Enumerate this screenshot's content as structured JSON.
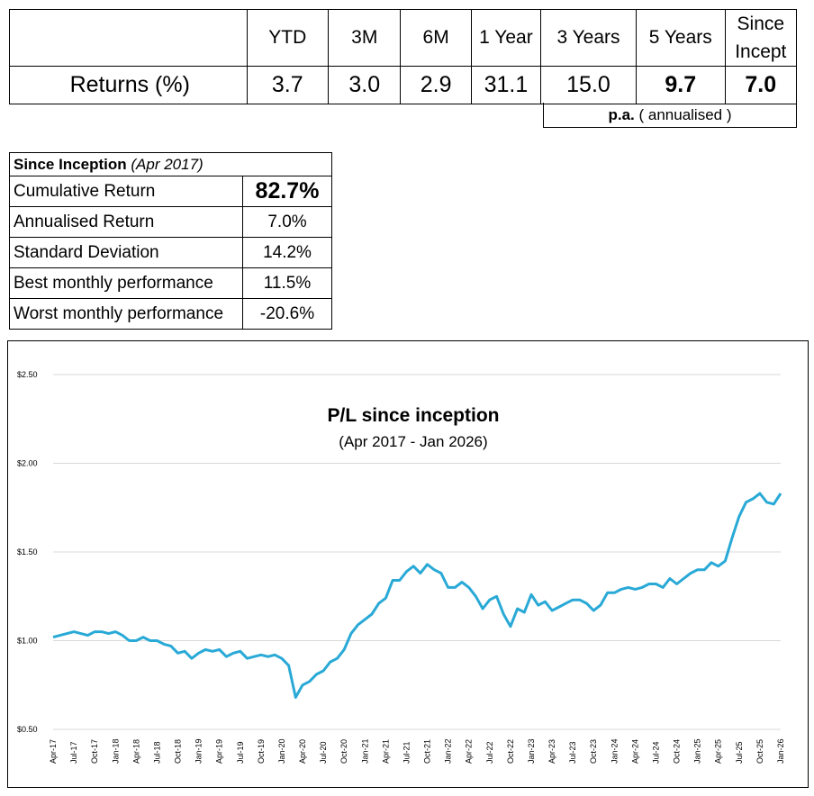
{
  "returns": {
    "row_label": "Returns (%)",
    "periods": [
      {
        "label": "YTD",
        "value": "3.7",
        "bold": false
      },
      {
        "label": "3M",
        "value": "3.0",
        "bold": false
      },
      {
        "label": "6M",
        "value": "2.9",
        "bold": false
      },
      {
        "label": "1 Year",
        "value": "31.1",
        "bold": false
      },
      {
        "label": "3 Years",
        "value": "15.0",
        "bold": false
      },
      {
        "label": "5 Years",
        "value": "9.7",
        "bold": true
      },
      {
        "label": "Since Incept",
        "value": "7.0",
        "bold": true
      }
    ],
    "note_bold": "p.a.",
    "note_rest": "( annualised )"
  },
  "inception": {
    "title": "Since Inception",
    "title_italic": "(Apr 2017)",
    "rows": [
      {
        "label": "Cumulative Return",
        "value": "82.7%"
      },
      {
        "label": "Annualised Return",
        "value": "7.0%"
      },
      {
        "label": "Standard Deviation",
        "value": "14.2%"
      },
      {
        "label": "Best monthly performance",
        "value": "11.5%"
      },
      {
        "label": "Worst monthly performance",
        "value": "-20.6%"
      }
    ]
  },
  "chart_data": {
    "type": "line",
    "title": "P/L since inception",
    "subtitle": "(Apr 2017 - Jan 2026)",
    "ylim": [
      0.5,
      2.5
    ],
    "y_ticks": [
      "$0.50",
      "$1.00",
      "$1.50",
      "$2.00",
      "$2.50"
    ],
    "y_tick_values": [
      0.5,
      1.0,
      1.5,
      2.0,
      2.5
    ],
    "x_ticks": [
      "Apr-17",
      "Jul-17",
      "Oct-17",
      "Jan-18",
      "Apr-18",
      "Jul-18",
      "Oct-18",
      "Jan-19",
      "Apr-19",
      "Jul-19",
      "Oct-19",
      "Jan-20",
      "Apr-20",
      "Jul-20",
      "Oct-20",
      "Jan-21",
      "Apr-21",
      "Jul-21",
      "Oct-21",
      "Jan-22",
      "Apr-22",
      "Jul-22",
      "Oct-22",
      "Jan-23",
      "Apr-23",
      "Jul-23",
      "Oct-23",
      "Jan-24",
      "Apr-24",
      "Jul-24",
      "Oct-24",
      "Jan-25",
      "Apr-25",
      "Jul-25",
      "Oct-25",
      "Jan-26"
    ],
    "grid": true,
    "color": "#29a9d6",
    "series": [
      {
        "values": [
          1.02,
          1.03,
          1.04,
          1.05,
          1.04,
          1.03,
          1.05,
          1.05,
          1.04,
          1.05,
          1.03,
          1.0,
          1.0,
          1.02,
          1.0,
          1.0,
          0.98,
          0.97,
          0.93,
          0.94,
          0.9,
          0.93,
          0.95,
          0.94,
          0.95,
          0.91,
          0.93,
          0.94,
          0.9,
          0.91,
          0.92,
          0.91,
          0.92,
          0.9,
          0.86,
          0.68,
          0.75,
          0.77,
          0.81,
          0.83,
          0.88,
          0.9,
          0.95,
          1.04,
          1.09,
          1.12,
          1.15,
          1.21,
          1.24,
          1.34,
          1.34,
          1.39,
          1.42,
          1.38,
          1.43,
          1.4,
          1.38,
          1.3,
          1.3,
          1.33,
          1.3,
          1.25,
          1.18,
          1.23,
          1.25,
          1.15,
          1.08,
          1.18,
          1.16,
          1.26,
          1.2,
          1.22,
          1.17,
          1.19,
          1.21,
          1.23,
          1.23,
          1.21,
          1.17,
          1.2,
          1.27,
          1.27,
          1.29,
          1.3,
          1.29,
          1.3,
          1.32,
          1.32,
          1.3,
          1.35,
          1.32,
          1.35,
          1.38,
          1.4,
          1.4,
          1.44,
          1.42,
          1.45,
          1.58,
          1.7,
          1.78,
          1.8,
          1.83,
          1.78,
          1.77,
          1.83
        ]
      }
    ]
  }
}
